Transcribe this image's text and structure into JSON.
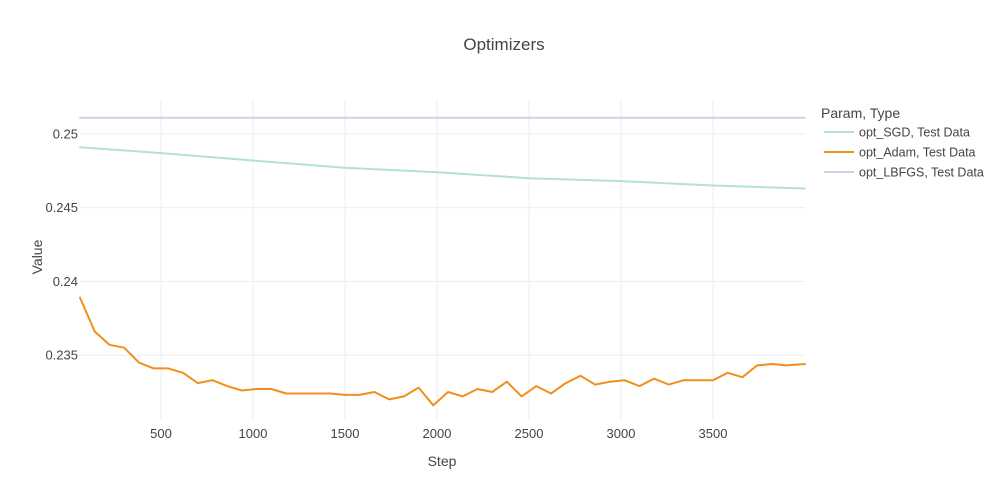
{
  "chart_data": {
    "type": "line",
    "title": "Optimizers",
    "xlabel": "Step",
    "ylabel": "Value",
    "xlim": [
      60,
      4000
    ],
    "ylim": [
      0.2306,
      0.2523
    ],
    "xticks": [
      500,
      1000,
      1500,
      2000,
      2500,
      3000,
      3500
    ],
    "yticks": [
      0.235,
      0.24,
      0.245,
      0.25
    ],
    "xtick_labels": [
      "500",
      "1000",
      "1500",
      "2000",
      "2500",
      "3000",
      "3500"
    ],
    "ytick_labels": [
      "0.235",
      "0.24",
      "0.245",
      "0.25"
    ],
    "grid": true,
    "legend_title": "Param, Type",
    "legend_position": "right",
    "series": [
      {
        "name": "opt_SGD, Test Data",
        "color": "#b3e2cd",
        "x": [
          60,
          500,
          1000,
          1500,
          2000,
          2500,
          3000,
          3500,
          4000
        ],
        "y": [
          0.2491,
          0.2487,
          0.2482,
          0.2477,
          0.2474,
          0.247,
          0.2468,
          0.2465,
          0.2463
        ]
      },
      {
        "name": "opt_Adam, Test Data",
        "color": "#f28e1c",
        "x": [
          60,
          140,
          220,
          300,
          380,
          460,
          540,
          620,
          700,
          780,
          860,
          940,
          1020,
          1100,
          1180,
          1260,
          1340,
          1420,
          1500,
          1580,
          1660,
          1740,
          1820,
          1900,
          1980,
          2060,
          2140,
          2220,
          2300,
          2380,
          2460,
          2540,
          2620,
          2700,
          2780,
          2860,
          2940,
          3020,
          3100,
          3180,
          3260,
          3340,
          3420,
          3500,
          3580,
          3660,
          3740,
          3820,
          3900,
          4000
        ],
        "y": [
          0.2389,
          0.2366,
          0.2357,
          0.2355,
          0.2345,
          0.2341,
          0.2341,
          0.2338,
          0.2331,
          0.2333,
          0.2329,
          0.2326,
          0.2327,
          0.2327,
          0.2324,
          0.2324,
          0.2324,
          0.2324,
          0.2323,
          0.2323,
          0.2325,
          0.232,
          0.2322,
          0.2328,
          0.2316,
          0.2325,
          0.2322,
          0.2327,
          0.2325,
          0.2332,
          0.2322,
          0.2329,
          0.2324,
          0.2331,
          0.2336,
          0.233,
          0.2332,
          0.2333,
          0.2329,
          0.2334,
          0.233,
          0.2333,
          0.2333,
          0.2333,
          0.2338,
          0.2335,
          0.2343,
          0.2344,
          0.2343,
          0.2344
        ]
      },
      {
        "name": "opt_LBFGS, Test Data",
        "color": "#cbd5e8",
        "x": [
          60,
          4000
        ],
        "y": [
          0.2511,
          0.2511
        ]
      }
    ]
  }
}
